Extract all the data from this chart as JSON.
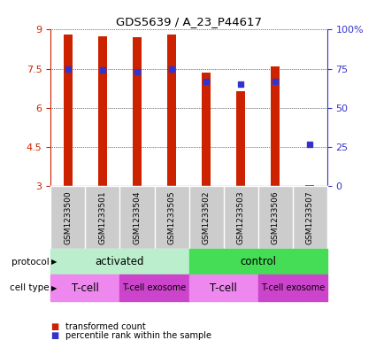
{
  "title": "GDS5639 / A_23_P44617",
  "samples": [
    "GSM1233500",
    "GSM1233501",
    "GSM1233504",
    "GSM1233505",
    "GSM1233502",
    "GSM1233503",
    "GSM1233506",
    "GSM1233507"
  ],
  "red_values": [
    8.82,
    8.75,
    8.7,
    8.82,
    7.35,
    6.65,
    7.6,
    3.05
  ],
  "blue_pct": [
    75,
    74,
    73,
    75,
    67,
    65,
    67,
    27
  ],
  "ylim_left": [
    3,
    9
  ],
  "ylim_right": [
    0,
    100
  ],
  "yticks_left": [
    3,
    4.5,
    6,
    7.5,
    9
  ],
  "ytick_labels_left": [
    "3",
    "4.5",
    "6",
    "7.5",
    "9"
  ],
  "yticks_right": [
    0,
    25,
    50,
    75,
    100
  ],
  "ytick_labels_right": [
    "0",
    "25",
    "50",
    "75",
    "100%"
  ],
  "bar_color": "#cc2200",
  "dot_color": "#3333cc",
  "protocol_activated": "activated",
  "protocol_control": "control",
  "protocol_color_activated": "#bbeecc",
  "protocol_color_control": "#44dd55",
  "cell_type_tcell_color": "#ee88ee",
  "cell_type_exosome_color": "#cc44cc",
  "cell_type_label1": "T-cell",
  "cell_type_label2": "T-cell exosome",
  "legend_red": "transformed count",
  "legend_blue": "percentile rank within the sample",
  "bar_width": 0.25,
  "sample_bg": "#cccccc",
  "grid_color": "#000000"
}
